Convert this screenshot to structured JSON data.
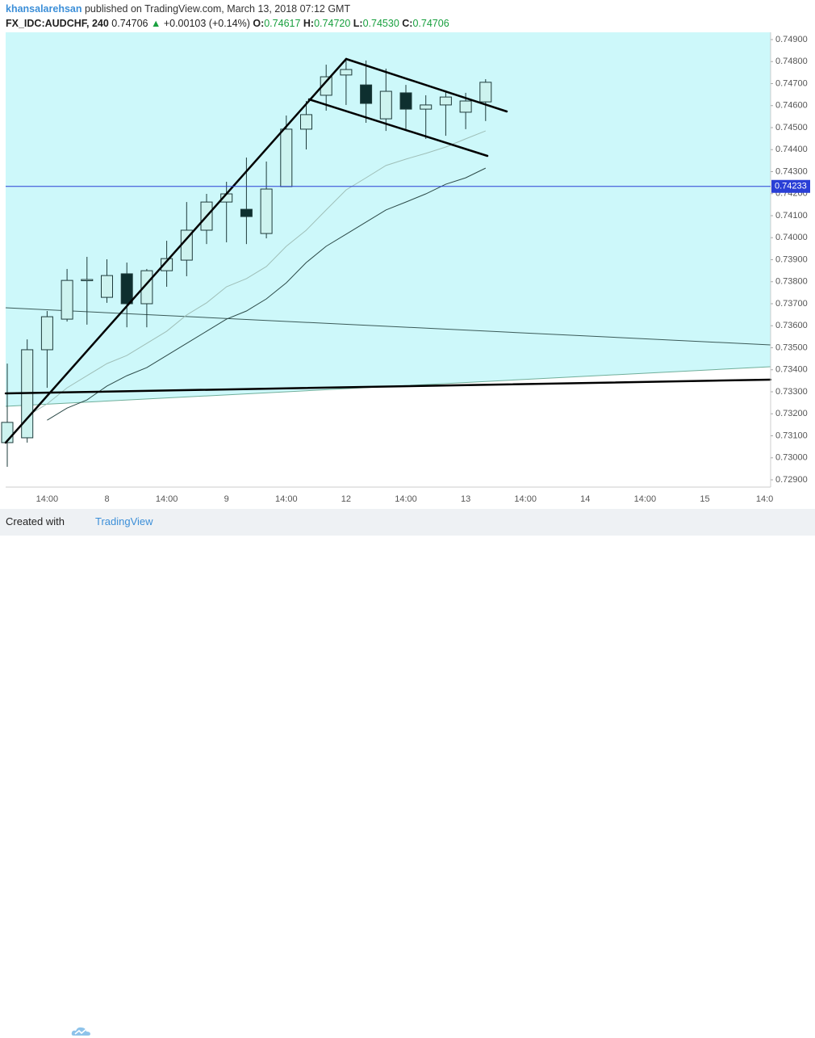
{
  "header": {
    "author": "khansalarehsan",
    "published": "published on TradingView.com, March 13, 2018 07:12 GMT",
    "symbol": "FX_IDC:AUDCHF, 240",
    "last": "0.74706",
    "arrow": "▲",
    "change": "+0.00103 (+0.14%)",
    "ohlc": [
      {
        "label": "O:",
        "value": "0.74617"
      },
      {
        "label": "H:",
        "value": "0.74720"
      },
      {
        "label": "L:",
        "value": "0.74530"
      },
      {
        "label": "C:",
        "value": "0.74706"
      }
    ]
  },
  "chart_data": {
    "type": "candlestick",
    "categories": [
      null,
      null,
      "14:00",
      null,
      null,
      "8",
      null,
      null,
      "14:00",
      null,
      null,
      "9",
      null,
      null,
      "14:00",
      null,
      null,
      "12",
      null,
      null,
      "14:00",
      null,
      null,
      "13",
      null,
      null,
      "14:00",
      null,
      null,
      "14",
      null,
      null,
      "14:00",
      null,
      null,
      "15",
      null,
      null,
      "14:0"
    ],
    "open": [
      0.73069,
      0.73091,
      0.73491,
      0.7363,
      0.73806,
      0.73729,
      0.73836,
      0.737,
      0.7385,
      0.73898,
      0.74034,
      0.74162,
      0.74129,
      0.74019,
      0.74232,
      0.74493,
      0.74647,
      0.74739,
      0.74694,
      0.7454,
      0.74658,
      0.74584,
      0.74603,
      0.7457,
      0.74617,
      null,
      null,
      null,
      null,
      null,
      null,
      null,
      null,
      null,
      null,
      null,
      null,
      null,
      null
    ],
    "high": [
      0.73428,
      0.73538,
      0.73667,
      0.73858,
      0.73913,
      0.73902,
      0.73887,
      0.73858,
      0.73986,
      0.74162,
      0.74199,
      0.74254,
      0.74364,
      0.74346,
      0.74555,
      0.74621,
      0.74786,
      0.74805,
      0.74805,
      0.74768,
      0.74694,
      0.74647,
      0.74669,
      0.74658,
      0.7472,
      null,
      null,
      null,
      null,
      null,
      null,
      null,
      null,
      null,
      null,
      null,
      null,
      null,
      null
    ],
    "low": [
      0.72959,
      0.73069,
      0.73318,
      0.73619,
      0.73605,
      0.73704,
      0.73593,
      0.73593,
      0.73777,
      0.73825,
      0.73971,
      0.73979,
      0.73971,
      0.73997,
      0.74232,
      0.74401,
      0.74577,
      0.74603,
      0.74522,
      0.74485,
      0.74493,
      0.74449,
      0.74463,
      0.74493,
      0.7453,
      null,
      null,
      null,
      null,
      null,
      null,
      null,
      null,
      null,
      null,
      null,
      null,
      null,
      null
    ],
    "close": [
      0.73161,
      0.73491,
      0.73641,
      0.73806,
      0.7381,
      0.73828,
      0.737,
      0.7385,
      0.73905,
      0.74034,
      0.74162,
      0.74199,
      0.74096,
      0.74221,
      0.74493,
      0.74559,
      0.74731,
      0.74764,
      0.7461,
      0.74665,
      0.74584,
      0.74603,
      0.74639,
      0.74621,
      0.74706,
      null,
      null,
      null,
      null,
      null,
      null,
      null,
      null,
      null,
      null,
      null,
      null,
      null,
      null
    ],
    "up_color": "#cdf3ef",
    "down_color": "#0e2f2f",
    "wick_color": "#1e3b3b",
    "series": [
      {
        "color": "#9fbfb8",
        "values": [
          null,
          0.7319,
          0.73245,
          0.73318,
          0.73373,
          0.73428,
          0.73465,
          0.7352,
          0.73575,
          0.73649,
          0.73704,
          0.73777,
          0.73814,
          0.73869,
          0.73961,
          0.74034,
          0.74126,
          0.74217,
          0.74272,
          0.74328,
          0.74357,
          0.74383,
          0.74412,
          0.74449,
          0.74485,
          null,
          null,
          null,
          null,
          null,
          null,
          null,
          null,
          null,
          null,
          null,
          null,
          null,
          null
        ]
      },
      {
        "color": "#2c4a48",
        "values": [
          null,
          null,
          0.73171,
          0.73226,
          0.73263,
          0.73326,
          0.73373,
          0.7341,
          0.73465,
          0.7352,
          0.73575,
          0.7363,
          0.73667,
          0.73722,
          0.73795,
          0.73887,
          0.73961,
          0.74016,
          0.74071,
          0.74126,
          0.74162,
          0.74199,
          0.74243,
          0.74272,
          0.74316,
          null,
          null,
          null,
          null,
          null,
          null,
          null,
          null,
          null,
          null,
          null,
          null,
          null,
          null
        ]
      }
    ],
    "price_line": 0.74233,
    "price_line_color": "#2a3fd6",
    "ylim": [
      0.72867,
      0.74933
    ],
    "yticks": [
      {
        "value": 0.749,
        "label": "0.74900"
      },
      {
        "value": 0.748,
        "label": "0.74800"
      },
      {
        "value": 0.747,
        "label": "0.74700"
      },
      {
        "value": 0.746,
        "label": "0.74600"
      },
      {
        "value": 0.745,
        "label": "0.74500"
      },
      {
        "value": 0.744,
        "label": "0.74400"
      },
      {
        "value": 0.743,
        "label": "0.74300"
      },
      {
        "value": 0.742,
        "label": "0.74200"
      },
      {
        "value": 0.741,
        "label": "0.74100"
      },
      {
        "value": 0.74,
        "label": "0.74000"
      },
      {
        "value": 0.739,
        "label": "0.73900"
      },
      {
        "value": 0.738,
        "label": "0.73800"
      },
      {
        "value": 0.737,
        "label": "0.73700"
      },
      {
        "value": 0.736,
        "label": "0.73600"
      },
      {
        "value": 0.735,
        "label": "0.73500"
      },
      {
        "value": 0.734,
        "label": "0.73400"
      },
      {
        "value": 0.733,
        "label": "0.73300"
      },
      {
        "value": 0.732,
        "label": "0.73200"
      },
      {
        "value": 0.731,
        "label": "0.73100"
      },
      {
        "value": 0.73,
        "label": "0.73000"
      },
      {
        "value": 0.729,
        "label": "0.72900"
      }
    ],
    "grid": false
  },
  "footer": {
    "created": "Created with",
    "brand": "TradingView"
  }
}
